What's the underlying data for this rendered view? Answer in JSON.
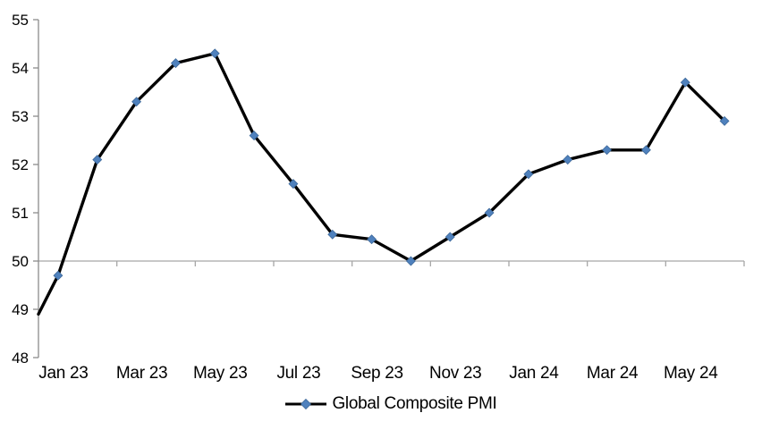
{
  "chart_data": {
    "type": "line",
    "title": "",
    "series": [
      {
        "name": "Global Composite PMI",
        "x": [
          "Jan 23",
          "Feb 23",
          "Mar 23",
          "Apr 23",
          "May 23",
          "Jun 23",
          "Jul 23",
          "Aug 23",
          "Sep 23",
          "Oct 23",
          "Nov 23",
          "Dec 23",
          "Jan 24",
          "Feb 24",
          "Mar 24",
          "Apr 24",
          "May 24",
          "Jun 24"
        ],
        "values": [
          49.7,
          52.1,
          53.3,
          54.1,
          54.3,
          52.6,
          51.6,
          50.55,
          50.45,
          50.0,
          50.5,
          51.0,
          51.8,
          52.1,
          52.3,
          52.3,
          53.7,
          52.9
        ],
        "line_color": "#000000",
        "marker": "diamond",
        "marker_color": "#4F81BD",
        "clipped_start_value_at_axis": 48.9
      }
    ],
    "x_tick_labels": [
      "Jan 23",
      "Mar 23",
      "May 23",
      "Jul 23",
      "Sep 23",
      "Nov 23",
      "Jan 24",
      "Mar 24",
      "May 24"
    ],
    "x_label_interval": 2,
    "y_ticks": [
      "48",
      "49",
      "50",
      "51",
      "52",
      "53",
      "54",
      "55"
    ],
    "ylim": [
      48,
      55
    ],
    "category_axis_crosses_at": 50,
    "grid": "off",
    "axis_color": "#8C8C8C",
    "crossing_line_color": "#A6A6A6",
    "legend": {
      "position": "bottom-center",
      "entries": [
        "Global Composite PMI"
      ]
    }
  }
}
